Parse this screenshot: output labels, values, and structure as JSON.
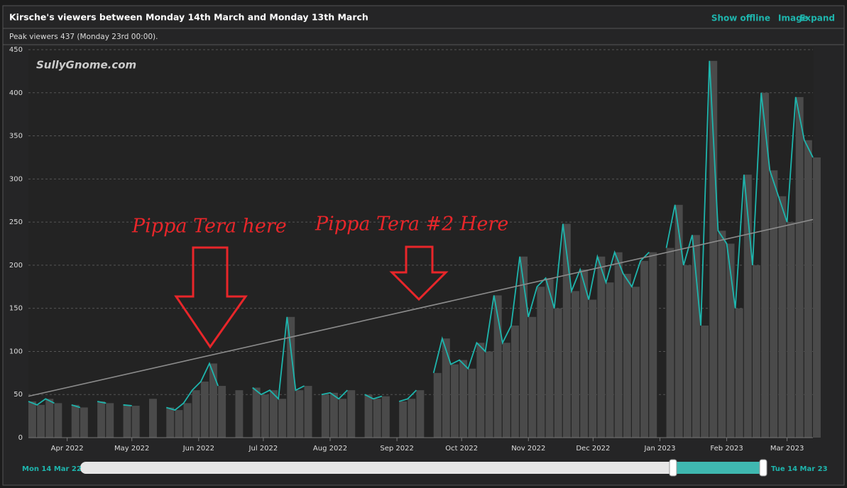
{
  "header": {
    "title": "Kirsche's viewers between Monday 14th March and Monday 13th March",
    "links": [
      "Show offline",
      "Image",
      "Expand"
    ],
    "subtitle": "Peak viewers 437 (Monday 23rd 00:00)."
  },
  "chart_data": {
    "type": "area-line",
    "watermark": "SullyGnome.com",
    "series": [
      {
        "color": "#1eb5ad",
        "fill": "#4a4a4a",
        "x": [
          0,
          4,
          8,
          12,
          16,
          20,
          24,
          28,
          32,
          36,
          40,
          44,
          48,
          52,
          56,
          60,
          64,
          68,
          72,
          76,
          80,
          84,
          88,
          92,
          96,
          100,
          104,
          108,
          112,
          116,
          120,
          124,
          128,
          132,
          136,
          140,
          144,
          148,
          152,
          156,
          160,
          164,
          168,
          172,
          176,
          180,
          184,
          188,
          192,
          196,
          200,
          204,
          208,
          212,
          216,
          220,
          224,
          228,
          232,
          236,
          240,
          244,
          248,
          252,
          256,
          260,
          264,
          268,
          272,
          276,
          280,
          284,
          288,
          292,
          296,
          300,
          304,
          308,
          312,
          316,
          320,
          324,
          328,
          332,
          336,
          340,
          344,
          348,
          352,
          356,
          360,
          364
        ],
        "values": [
          42,
          38,
          45,
          40,
          null,
          38,
          35,
          null,
          42,
          40,
          null,
          38,
          37,
          null,
          45,
          null,
          35,
          32,
          40,
          55,
          65,
          86,
          60,
          null,
          55,
          null,
          58,
          50,
          55,
          45,
          140,
          55,
          60,
          null,
          50,
          52,
          45,
          55,
          null,
          50,
          45,
          48,
          null,
          42,
          45,
          55,
          null,
          75,
          115,
          85,
          90,
          80,
          110,
          100,
          165,
          110,
          130,
          210,
          140,
          175,
          185,
          150,
          248,
          170,
          195,
          160,
          210,
          180,
          215,
          190,
          175,
          205,
          215,
          null,
          220,
          270,
          200,
          235,
          130,
          437,
          240,
          225,
          150,
          305,
          200,
          400,
          310,
          280,
          250,
          395,
          345,
          325
        ]
      }
    ],
    "trend": {
      "color": "#8c8c8c",
      "x": [
        0,
        364
      ],
      "values": [
        48,
        253
      ]
    },
    "xlim": [
      0,
      364
    ],
    "xticks": [
      {
        "value": 18,
        "label": "Apr 2022"
      },
      {
        "value": 48,
        "label": "May 2022"
      },
      {
        "value": 79,
        "label": "Jun 2022"
      },
      {
        "value": 109,
        "label": "Jul 2022"
      },
      {
        "value": 140,
        "label": "Aug 2022"
      },
      {
        "value": 171,
        "label": "Sep 2022"
      },
      {
        "value": 201,
        "label": "Oct 2022"
      },
      {
        "value": 232,
        "label": "Nov 2022"
      },
      {
        "value": 262,
        "label": "Dec 2022"
      },
      {
        "value": 293,
        "label": "Jan 2023"
      },
      {
        "value": 324,
        "label": "Feb 2023"
      },
      {
        "value": 352,
        "label": "Mar 2023"
      }
    ],
    "ylim": [
      0,
      450
    ],
    "yticks": [
      0,
      50,
      100,
      150,
      200,
      250,
      300,
      350,
      400,
      450
    ],
    "grid": true,
    "annotations": [
      "Pippa Tera here",
      "Pippa Tera #2 Here"
    ],
    "navigator": {
      "start": "Mon 14 Mar 22",
      "end": "Tue 14 Mar 23"
    }
  }
}
